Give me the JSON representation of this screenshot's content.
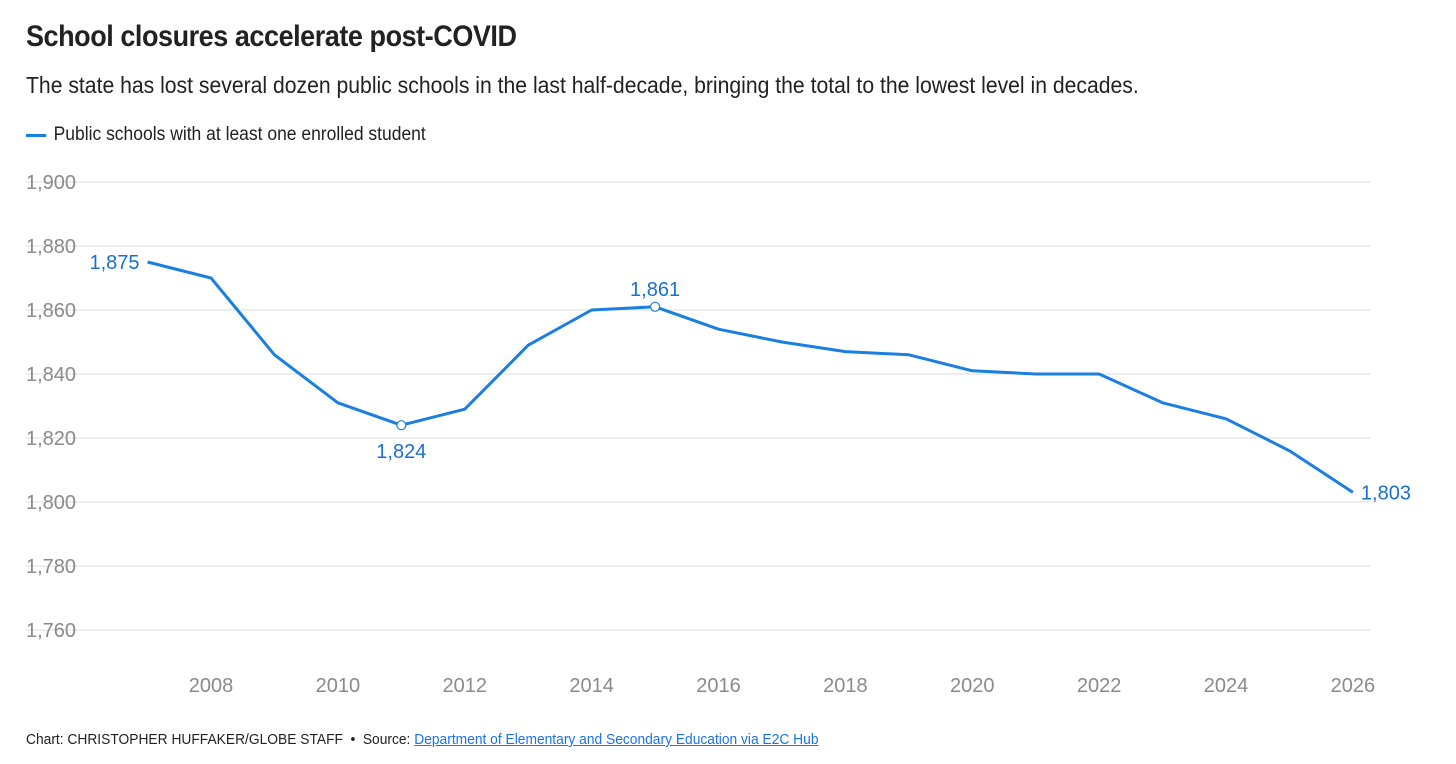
{
  "header": {
    "title": "School closures accelerate post-COVID",
    "subtitle": "The state has lost several dozen public schools in the last half-decade, bringing the total to the lowest level in decades."
  },
  "footer": {
    "credit": "Chart: CHRISTOPHER HUFFAKER/GLOBE STAFF",
    "separator": "•",
    "source_label": "Source:",
    "source_link": "Department of Elementary and Secondary Education via E2C Hub"
  },
  "colors": {
    "line": "#1a7fe0",
    "annotation": "#1a6fd0",
    "grid": "#dddddd"
  },
  "chart_data": {
    "type": "line",
    "title": "School closures accelerate post-COVID",
    "xlabel": "",
    "ylabel": "",
    "ylim": [
      1750,
      1900
    ],
    "xlim": [
      2006.3,
      2026.3
    ],
    "yticks": [
      1760,
      1780,
      1800,
      1820,
      1840,
      1860,
      1880,
      1900
    ],
    "ytick_labels": [
      "1,760",
      "1,780",
      "1,800",
      "1,820",
      "1,840",
      "1,860",
      "1,880",
      "1,900"
    ],
    "xticks": [
      2008,
      2010,
      2012,
      2014,
      2016,
      2018,
      2020,
      2022,
      2024,
      2026
    ],
    "xtick_labels": [
      "2008",
      "2010",
      "2012",
      "2014",
      "2016",
      "2018",
      "2020",
      "2022",
      "2024",
      "2026"
    ],
    "grid": true,
    "legend_placement": "top-left",
    "series": [
      {
        "name": "Public schools with at least one enrolled student",
        "x": [
          2007,
          2008,
          2009,
          2010,
          2011,
          2012,
          2013,
          2014,
          2015,
          2016,
          2017,
          2018,
          2019,
          2020,
          2021,
          2022,
          2023,
          2024,
          2025,
          2026
        ],
        "values": [
          1875,
          1870,
          1846,
          1831,
          1824,
          1829,
          1849,
          1860,
          1861,
          1854,
          1850,
          1847,
          1846,
          1841,
          1840,
          1840,
          1831,
          1826,
          1816,
          1803
        ]
      }
    ],
    "annotations": [
      {
        "x": 2007,
        "value": 1875,
        "label": "1,875",
        "position": "left",
        "marker": false
      },
      {
        "x": 2011,
        "value": 1824,
        "label": "1,824",
        "position": "below",
        "marker": true
      },
      {
        "x": 2015,
        "value": 1861,
        "label": "1,861",
        "position": "above",
        "marker": true
      },
      {
        "x": 2026,
        "value": 1803,
        "label": "1,803",
        "position": "right",
        "marker": false
      }
    ]
  }
}
